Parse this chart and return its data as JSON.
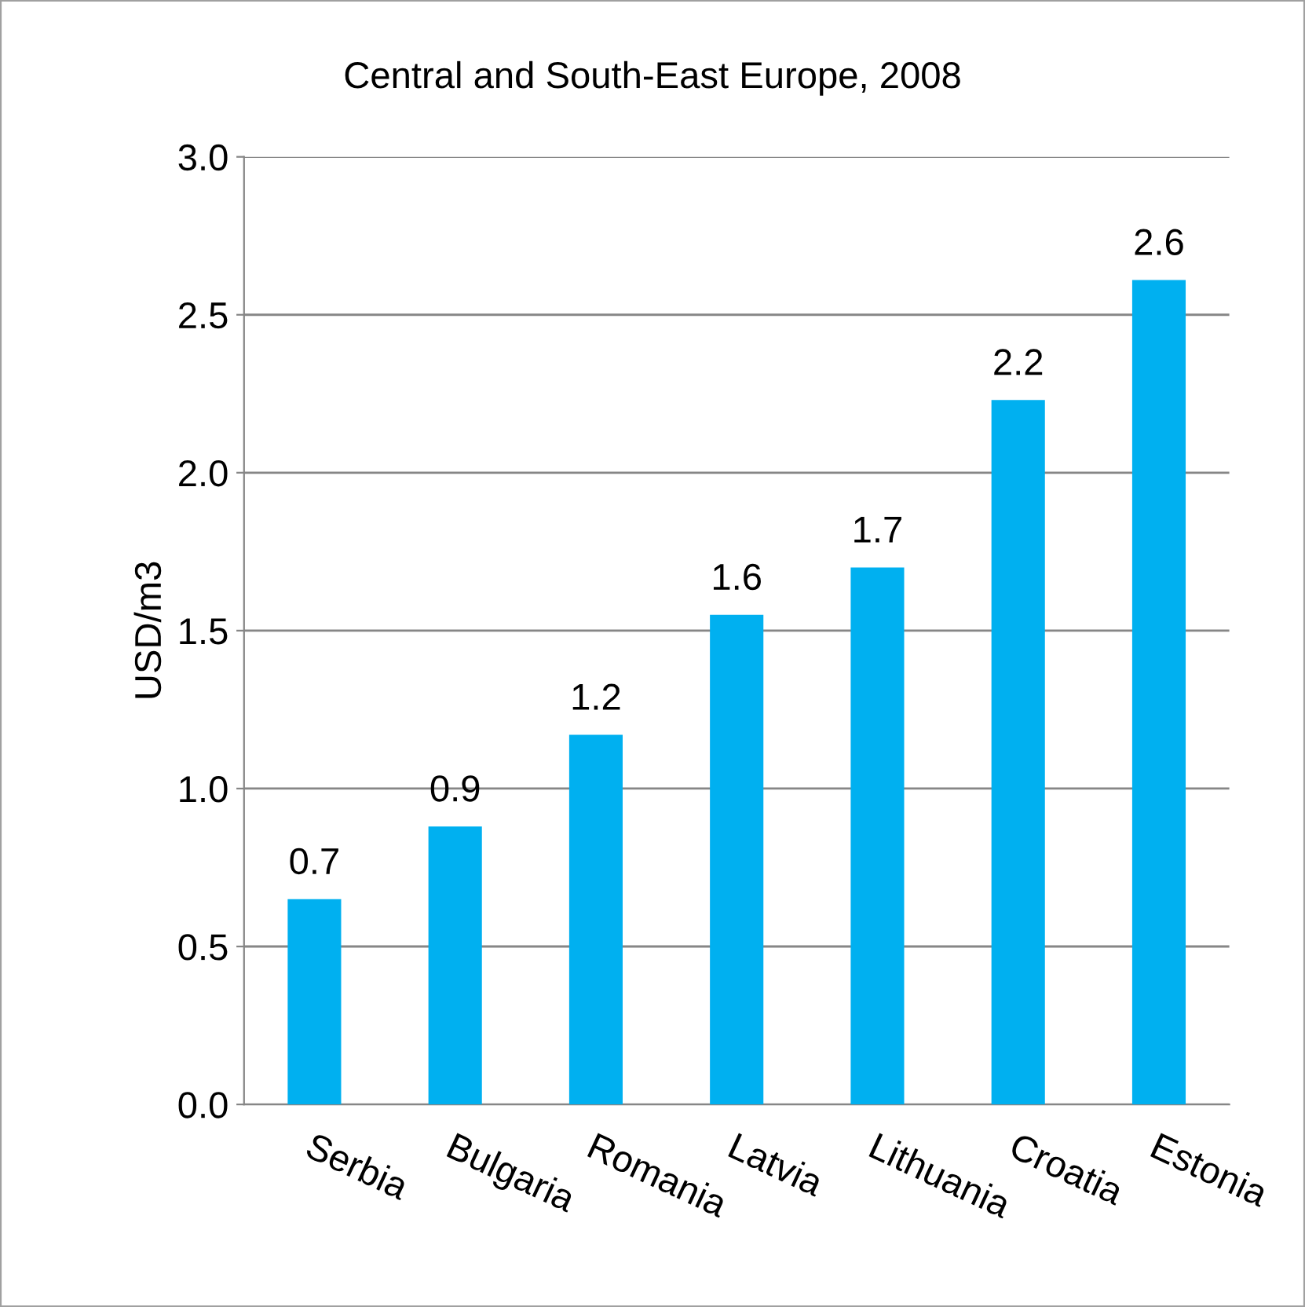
{
  "chart_data": {
    "type": "bar",
    "title": "Central and South-East Europe, 2008",
    "ylabel": "USD/m3",
    "categories": [
      "Serbia",
      "Bulgaria",
      "Romania",
      "Latvia",
      "Lithuania",
      "Croatia",
      "Estonia"
    ],
    "values": [
      0.65,
      0.88,
      1.17,
      1.55,
      1.7,
      2.23,
      2.61
    ],
    "value_labels": [
      "0.7",
      "0.9",
      "1.2",
      "1.6",
      "1.7",
      "2.2",
      "2.6"
    ],
    "color": "#00b0f0",
    "ylim": [
      0,
      3
    ],
    "yticks": [
      {
        "value": 0,
        "label": "0.0"
      },
      {
        "value": 0.5,
        "label": "0.5"
      },
      {
        "value": 1,
        "label": "1.0"
      },
      {
        "value": 1.5,
        "label": "1.5"
      },
      {
        "value": 2,
        "label": "2.0"
      },
      {
        "value": 2.5,
        "label": "2.5"
      },
      {
        "value": 3,
        "label": "3.0"
      }
    ],
    "grid": "y"
  }
}
